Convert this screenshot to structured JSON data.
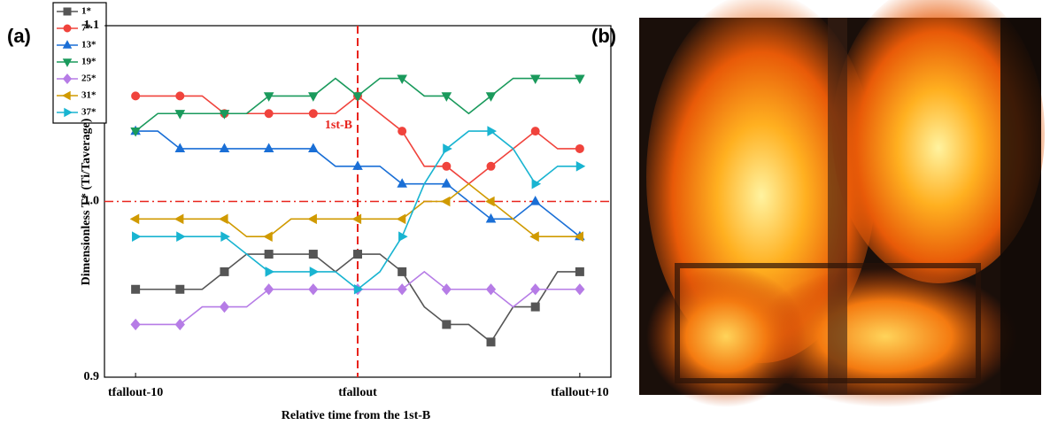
{
  "chart_data": {
    "type": "line",
    "panel_a": "(a)",
    "panel_b": "(b)",
    "xlabel": "Relative time from the 1st-B",
    "ylabel": "Dimensionless T* (Ti/Taverage)",
    "annotation": "1st-B",
    "vline": 0,
    "hline": 1,
    "xlim": [
      -11.4,
      11.4
    ],
    "ylim": [
      0.9,
      1.1
    ],
    "xticks": [
      {
        "value": -10,
        "label": "tfallout-10"
      },
      {
        "value": 0,
        "label": "tfallout"
      },
      {
        "value": 10,
        "label": "tfallout+10"
      }
    ],
    "yticks": [
      0.9,
      {
        "value": 1,
        "label": "1.0"
      },
      1.1
    ],
    "x": [
      -10,
      -9,
      -8,
      -7,
      -6,
      -5,
      -4,
      -3,
      -2,
      -1,
      0,
      1,
      2,
      3,
      4,
      5,
      6,
      7,
      8,
      9,
      10
    ],
    "series": [
      {
        "name": "1*",
        "color": "#555555",
        "marker": "square",
        "values": [
          0.95,
          0.95,
          0.95,
          0.95,
          0.96,
          0.97,
          0.97,
          0.97,
          0.97,
          0.96,
          0.97,
          0.97,
          0.96,
          0.94,
          0.93,
          0.93,
          0.92,
          0.94,
          0.94,
          0.96,
          0.96
        ]
      },
      {
        "name": "7*",
        "color": "#f0433c",
        "marker": "circle",
        "values": [
          1.06,
          1.06,
          1.06,
          1.06,
          1.05,
          1.05,
          1.05,
          1.05,
          1.05,
          1.05,
          1.06,
          1.05,
          1.04,
          1.02,
          1.02,
          1.01,
          1.02,
          1.03,
          1.04,
          1.03,
          1.03
        ]
      },
      {
        "name": "13*",
        "color": "#1a6fd6",
        "marker": "up",
        "values": [
          1.04,
          1.04,
          1.03,
          1.03,
          1.03,
          1.03,
          1.03,
          1.03,
          1.03,
          1.02,
          1.02,
          1.02,
          1.01,
          1.01,
          1.01,
          1.0,
          0.99,
          0.99,
          1.0,
          0.99,
          0.98
        ]
      },
      {
        "name": "19*",
        "color": "#1a9a5c",
        "marker": "down",
        "values": [
          1.04,
          1.05,
          1.05,
          1.05,
          1.05,
          1.05,
          1.06,
          1.06,
          1.06,
          1.07,
          1.06,
          1.07,
          1.07,
          1.06,
          1.06,
          1.05,
          1.06,
          1.07,
          1.07,
          1.07,
          1.07
        ]
      },
      {
        "name": "25*",
        "color": "#b67ce6",
        "marker": "diamond",
        "values": [
          0.93,
          0.93,
          0.93,
          0.94,
          0.94,
          0.94,
          0.95,
          0.95,
          0.95,
          0.95,
          0.95,
          0.95,
          0.95,
          0.96,
          0.95,
          0.95,
          0.95,
          0.94,
          0.95,
          0.95,
          0.95
        ]
      },
      {
        "name": "31*",
        "color": "#d09a00",
        "marker": "left",
        "values": [
          0.99,
          0.99,
          0.99,
          0.99,
          0.99,
          0.98,
          0.98,
          0.99,
          0.99,
          0.99,
          0.99,
          0.99,
          0.99,
          1.0,
          1.0,
          1.01,
          1.0,
          0.99,
          0.98,
          0.98,
          0.98
        ]
      },
      {
        "name": "37*",
        "color": "#19b4d1",
        "marker": "right",
        "values": [
          0.98,
          0.98,
          0.98,
          0.98,
          0.98,
          0.97,
          0.96,
          0.96,
          0.96,
          0.96,
          0.95,
          0.96,
          0.98,
          1.01,
          1.03,
          1.04,
          1.04,
          1.03,
          1.01,
          1.02,
          1.02
        ]
      }
    ]
  }
}
